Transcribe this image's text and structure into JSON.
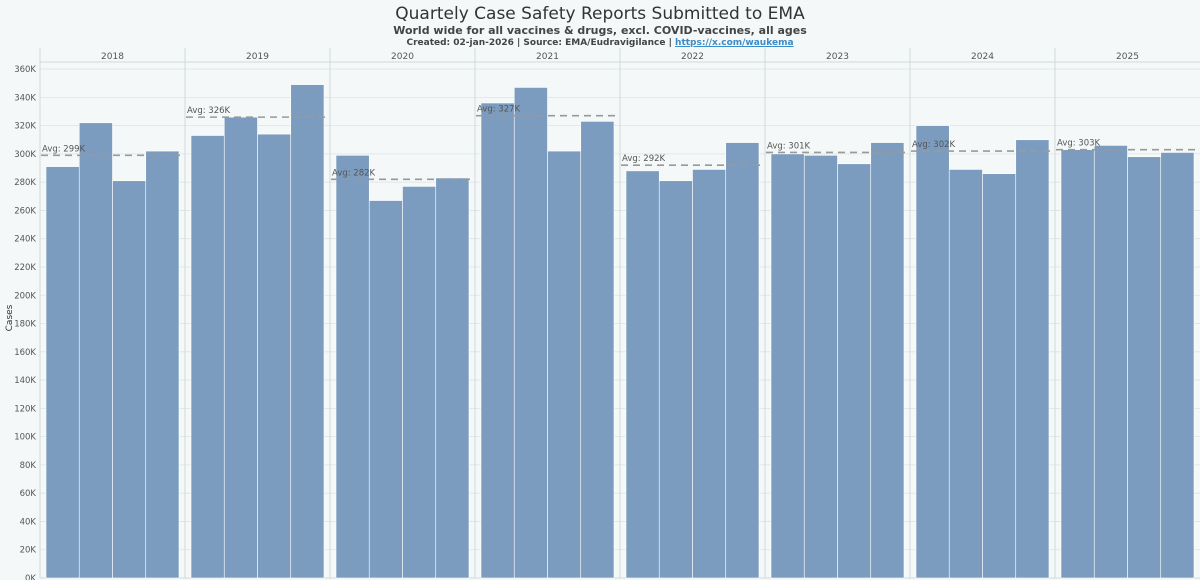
{
  "header": {
    "title": "Quartely Case Safety Reports Submitted to EMA",
    "subtitle": "World wide for all vaccines & drugs, excl. COVID-vaccines, all ages",
    "credits_prefix": "Created: 02-jan-2026 | Source: EMA/Eudravigilance | ",
    "credits_link": "https://x.com/waukema"
  },
  "colors": {
    "bar": "#7b9cbf",
    "avg_line": "#999999",
    "grid": "#dde3e3",
    "panel_border": "#d2d8d8",
    "axis_text": "#555555"
  },
  "chart_data": {
    "type": "bar",
    "title": "Quartely Case Safety Reports Submitted to EMA",
    "ylabel": "Cases",
    "xlabel": "",
    "ylim": [
      0,
      365000
    ],
    "y_ticks": [
      0,
      20000,
      40000,
      60000,
      80000,
      100000,
      120000,
      140000,
      160000,
      180000,
      200000,
      220000,
      240000,
      260000,
      280000,
      300000,
      320000,
      340000,
      360000
    ],
    "y_tick_labels": [
      "0K",
      "20K",
      "40K",
      "60K",
      "80K",
      "100K",
      "120K",
      "140K",
      "160K",
      "180K",
      "200K",
      "220K",
      "240K",
      "260K",
      "280K",
      "300K",
      "320K",
      "340K",
      "360K"
    ],
    "grid": true,
    "panels": [
      {
        "year": "2018",
        "values": [
          291000,
          322000,
          281000,
          302000
        ],
        "avg": 299000,
        "avg_label": "Avg: 299K"
      },
      {
        "year": "2019",
        "values": [
          313000,
          326000,
          314000,
          349000
        ],
        "avg": 326000,
        "avg_label": "Avg: 326K"
      },
      {
        "year": "2020",
        "values": [
          299000,
          267000,
          277000,
          283000
        ],
        "avg": 282000,
        "avg_label": "Avg: 282K"
      },
      {
        "year": "2021",
        "values": [
          336000,
          347000,
          302000,
          323000
        ],
        "avg": 327000,
        "avg_label": "Avg: 327K"
      },
      {
        "year": "2022",
        "values": [
          288000,
          281000,
          289000,
          308000
        ],
        "avg": 292000,
        "avg_label": "Avg: 292K"
      },
      {
        "year": "2023",
        "values": [
          300000,
          299000,
          293000,
          308000
        ],
        "avg": 301000,
        "avg_label": "Avg: 301K"
      },
      {
        "year": "2024",
        "values": [
          320000,
          289000,
          286000,
          310000
        ],
        "avg": 302000,
        "avg_label": "Avg: 302K"
      },
      {
        "year": "2025",
        "values": [
          303000,
          306000,
          298000,
          301000
        ],
        "avg": 303000,
        "avg_label": "Avg: 303K"
      }
    ]
  }
}
